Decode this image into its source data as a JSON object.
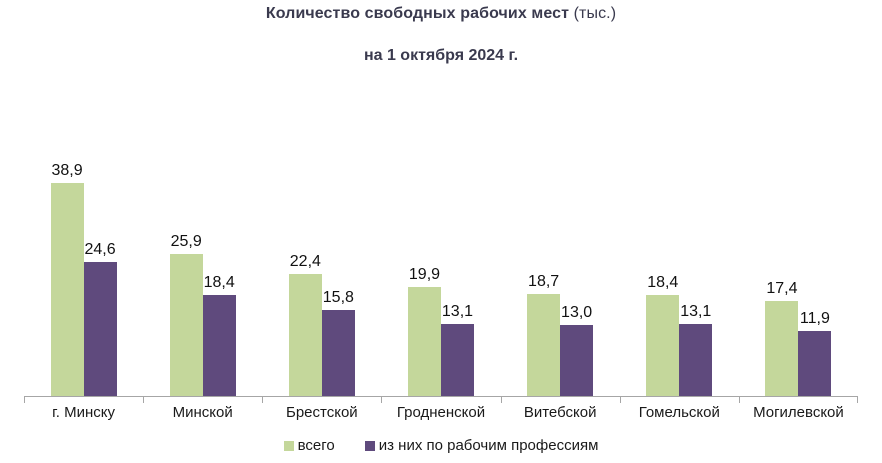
{
  "chart_data": {
    "type": "bar",
    "title_main": "Количество свободных рабочих мест",
    "title_unit": "(тыс.)",
    "subtitle": "на 1 октября 2024 г.",
    "categories": [
      "г. Минску",
      "Минской",
      "Брестской",
      "Гродненской",
      "Витебской",
      "Гомельской",
      "Могилевской"
    ],
    "series": [
      {
        "name": "всего",
        "color": "#c4d79b",
        "values": [
          38.9,
          25.9,
          22.4,
          19.9,
          18.7,
          18.4,
          17.4
        ]
      },
      {
        "name": "из них по рабочим профессиям",
        "color": "#5f4a7d",
        "values": [
          24.6,
          18.4,
          15.8,
          13.1,
          13.0,
          13.1,
          11.9
        ]
      }
    ],
    "value_labels": [
      [
        "38,9",
        "25,9",
        "22,4",
        "19,9",
        "18,7",
        "18,4",
        "17,4"
      ],
      [
        "24,6",
        "18,4",
        "15,8",
        "13,1",
        "13,0",
        "13,1",
        "11,9"
      ]
    ],
    "ylim": [
      0,
      45
    ],
    "grid": false,
    "legend_position": "bottom",
    "decimal_separator": ","
  },
  "colors": {
    "title": "#3a3a4e",
    "text": "#1a1a1a",
    "axis": "#a6a6a6",
    "background": "#ffffff"
  }
}
